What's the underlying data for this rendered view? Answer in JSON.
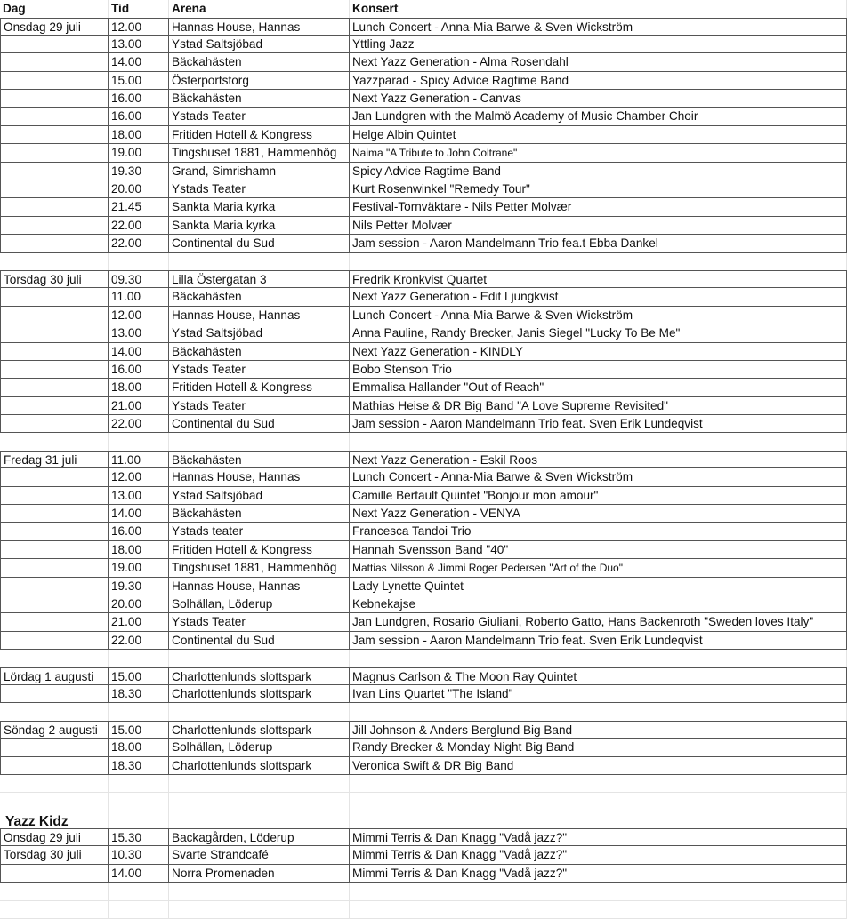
{
  "headers": [
    "Dag",
    "Tid",
    "Arena",
    "Konsert"
  ],
  "sections": [
    {
      "rows": [
        [
          "Onsdag 29 juli",
          "12.00",
          "Hannas House, Hannas",
          "Lunch Concert - Anna-Mia Barwe & Sven Wickström"
        ],
        [
          "",
          "13.00",
          "Ystad Saltsjöbad",
          "Yttling Jazz"
        ],
        [
          "",
          "14.00",
          "Bäckahästen",
          "Next Yazz Generation - Alma Rosendahl"
        ],
        [
          "",
          "15.00",
          "Österportstorg",
          "Yazzparad - Spicy Advice Ragtime Band"
        ],
        [
          "",
          "16.00",
          "Bäckahästen",
          "Next Yazz Generation - Canvas"
        ],
        [
          "",
          "16.00",
          "Ystads Teater",
          "Jan Lundgren with the Malmö Academy of Music Chamber Choir"
        ],
        [
          "",
          "18.00",
          "Fritiden Hotell & Kongress",
          "Helge Albin Quintet"
        ],
        [
          "",
          "19.00",
          "Tingshuset 1881, Hammenhög",
          "Naima \"A Tribute to John Coltrane\""
        ],
        [
          "",
          "19.30",
          "Grand, Simrishamn",
          "Spicy Advice Ragtime Band"
        ],
        [
          "",
          "20.00",
          "Ystads Teater",
          "Kurt Rosenwinkel \"Remedy Tour\""
        ],
        [
          "",
          "21.45",
          "Sankta Maria kyrka",
          "Festival-Tornväktare - Nils Petter Molvær"
        ],
        [
          "",
          "22.00",
          "Sankta Maria kyrka",
          "Nils Petter Molvær"
        ],
        [
          "",
          "22.00",
          "Continental du Sud",
          "Jam session -  Aaron Mandelmann Trio fea.t Ebba Dankel"
        ]
      ],
      "blank_after": 1
    },
    {
      "rows": [
        [
          "Torsdag 30 juli",
          "09.30",
          "Lilla Östergatan 3",
          "Fredrik Kronkvist Quartet"
        ],
        [
          "",
          "11.00",
          "Bäckahästen",
          "Next Yazz Generation - Edit Ljungkvist"
        ],
        [
          "",
          "12.00",
          "Hannas House, Hannas",
          "Lunch Concert - Anna-Mia Barwe & Sven Wickström"
        ],
        [
          "",
          "13.00",
          "Ystad Saltsjöbad",
          "Anna Pauline, Randy Brecker, Janis Siegel \"Lucky To Be Me\""
        ],
        [
          "",
          "14.00",
          "Bäckahästen",
          "Next Yazz Generation - KINDLY"
        ],
        [
          "",
          "16.00",
          "Ystads Teater",
          "Bobo Stenson Trio"
        ],
        [
          "",
          "18.00",
          "Fritiden Hotell & Kongress",
          "Emmalisa Hallander \"Out of Reach\""
        ],
        [
          "",
          "21.00",
          "Ystads Teater",
          "Mathias Heise & DR Big Band \"A Love Supreme Revisited\""
        ],
        [
          "",
          "22.00",
          "Continental du Sud",
          "Jam session - Aaron Mandelmann Trio feat. Sven Erik Lundeqvist"
        ]
      ],
      "blank_after": 1
    },
    {
      "rows": [
        [
          "Fredag 31 juli",
          "11.00",
          "Bäckahästen",
          "Next Yazz Generation - Eskil Roos"
        ],
        [
          "",
          "12.00",
          "Hannas House, Hannas",
          "Lunch Concert - Anna-Mia Barwe & Sven Wickström"
        ],
        [
          "",
          "13.00",
          "Ystad Saltsjöbad",
          "Camille Bertault Quintet  \"Bonjour mon amour\""
        ],
        [
          "",
          "14.00",
          "Bäckahästen",
          "Next Yazz Generation - VENYA"
        ],
        [
          "",
          "16.00",
          "Ystads teater",
          "Francesca Tandoi Trio"
        ],
        [
          "",
          "18.00",
          "Fritiden Hotell & Kongress",
          "Hannah Svensson Band \"40\""
        ],
        [
          "",
          "19.00",
          "Tingshuset 1881, Hammenhög",
          "Mattias Nilsson & Jimmi Roger Pedersen  \"Art of the Duo\""
        ],
        [
          "",
          "19.30",
          "Hannas House, Hannas",
          "Lady Lynette Quintet"
        ],
        [
          "",
          "20.00",
          "Solhällan, Löderup",
          "Kebnekajse"
        ],
        [
          "",
          "21.00",
          "Ystads Teater",
          "Jan Lundgren, Rosario Giuliani, Roberto Gatto, Hans Backenroth \"Sweden loves Italy\""
        ],
        [
          "",
          "22.00",
          "Continental du Sud",
          "Jam session - Aaron Mandelmann  Trio feat. Sven Erik Lundeqvist"
        ]
      ],
      "blank_after": 1
    },
    {
      "rows": [
        [
          "Lördag 1 augusti",
          "15.00",
          "Charlottenlunds slottspark",
          "Magnus Carlson & The Moon Ray Quintet"
        ],
        [
          "",
          "18.30",
          "Charlottenlunds slottspark",
          "Ivan Lins Quartet \"The Island\""
        ]
      ],
      "blank_after": 1
    },
    {
      "rows": [
        [
          "Söndag 2 augusti",
          "15.00",
          "Charlottenlunds slottspark",
          "Jill Johnson & Anders Berglund Big Band"
        ],
        [
          "",
          "18.00",
          "Solhällan, Löderup",
          "Randy Brecker & Monday Night Big Band"
        ],
        [
          "",
          "18.30",
          "Charlottenlunds slottspark",
          "Veronica Swift & DR Big Band"
        ]
      ],
      "blank_after": 2
    },
    {
      "title": "Yazz Kidz",
      "rows": [
        [
          "Onsdag 29 juli",
          "15.30",
          "Backagården, Löderup",
          "Mimmi Terris & Dan Knagg \"Vadå jazz?\""
        ],
        [
          "Torsdag 30 juli",
          "10.30",
          "Svarte Strandcafé",
          "Mimmi Terris & Dan Knagg \"Vadå jazz?\""
        ],
        [
          "",
          "14.00",
          "Norra Promenaden",
          "Mimmi Terris & Dan Knagg \"Vadå jazz?\""
        ]
      ],
      "blank_after": 2
    }
  ]
}
